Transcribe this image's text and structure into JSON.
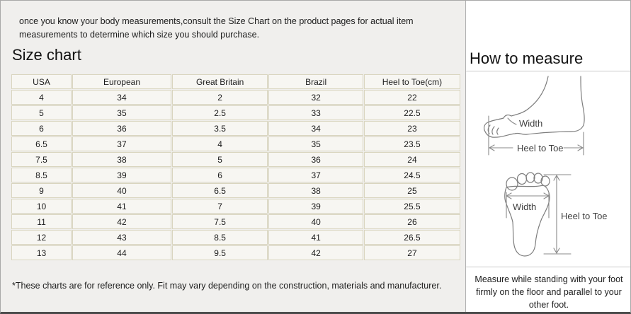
{
  "intro": {
    "text": "once you know your body measurements,consult the Size Chart on the product pages for actual item measurements to determine which size you should purchase."
  },
  "size_chart": {
    "title": "Size chart",
    "columns": [
      "USA",
      "European",
      "Great Britain",
      "Brazil",
      "Heel to Toe(cm)"
    ],
    "rows": [
      [
        "4",
        "34",
        "2",
        "32",
        "22"
      ],
      [
        "5",
        "35",
        "2.5",
        "33",
        "22.5"
      ],
      [
        "6",
        "36",
        "3.5",
        "34",
        "23"
      ],
      [
        "6.5",
        "37",
        "4",
        "35",
        "23.5"
      ],
      [
        "7.5",
        "38",
        "5",
        "36",
        "24"
      ],
      [
        "8.5",
        "39",
        "6",
        "37",
        "24.5"
      ],
      [
        "9",
        "40",
        "6.5",
        "38",
        "25"
      ],
      [
        "10",
        "41",
        "7",
        "39",
        "25.5"
      ],
      [
        "11",
        "42",
        "7.5",
        "40",
        "26"
      ],
      [
        "12",
        "43",
        "8.5",
        "41",
        "26.5"
      ],
      [
        "13",
        "44",
        "9.5",
        "42",
        "27"
      ]
    ],
    "footnote": "*These charts are for reference only. Fit may vary depending on the construction, materials and manufacturer."
  },
  "how_to_measure": {
    "title": "How to measure",
    "side_diagram": {
      "width_label": "Width",
      "length_label": "Heel to Toe"
    },
    "sole_diagram": {
      "width_label": "Width",
      "length_label": "Heel to Toe"
    },
    "note": "Measure while standing with your foot firmly on the floor and parallel to your other foot."
  },
  "colors": {
    "page_bg": "#f0efed",
    "panel_bg": "#ffffff",
    "cell_bg": "#f7f6f2",
    "table_border": "#d9d5bf",
    "text": "#1c1c1c",
    "diagram_line": "#7d7d7d",
    "bottom_border": "#4c4c4c"
  }
}
